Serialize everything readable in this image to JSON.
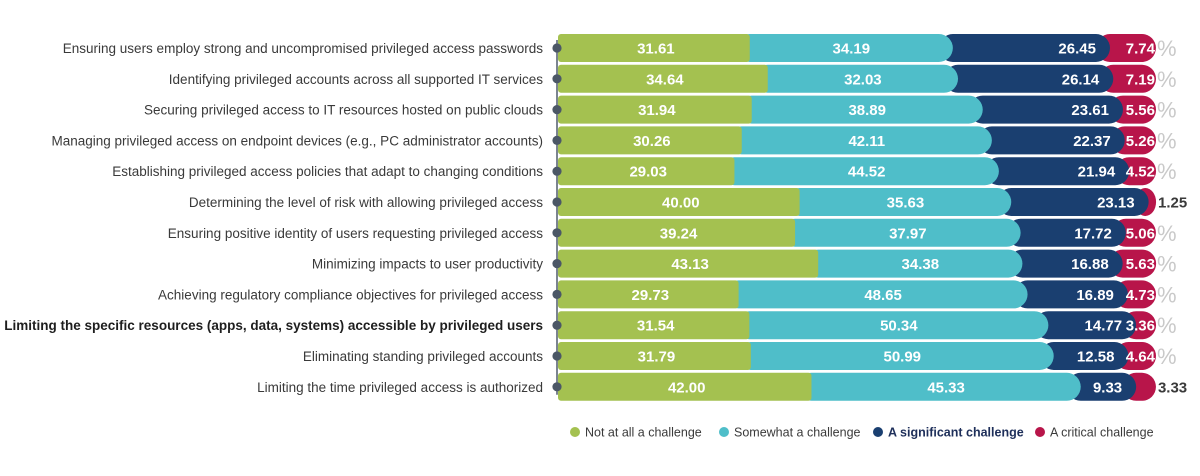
{
  "chart_data": {
    "type": "bar",
    "orientation": "horizontal-stacked-percent",
    "percent_symbol": "%",
    "colors": [
      "#a4c150",
      "#4fbec9",
      "#1a3f70",
      "#b8154a"
    ],
    "categories": [
      "Ensuring users employ strong and uncompromised privileged access passwords",
      "Identifying privileged accounts across all supported IT services",
      "Securing privileged access to IT resources hosted on public clouds",
      "Managing privileged access on endpoint devices (e.g., PC administrator accounts)",
      "Establishing privileged access policies that adapt to changing conditions",
      "Determining the level of risk with allowing privileged access",
      "Ensuring positive identity of users requesting privileged access",
      "Minimizing impacts to user productivity",
      "Achieving regulatory compliance objectives for privileged access",
      "Limiting the specific resources (apps, data, systems) accessible by privileged users",
      "Eliminating standing privileged accounts",
      "Limiting the time privileged access is authorized"
    ],
    "highlighted_category_index": 9,
    "series": [
      {
        "name": "Not at all a challenge",
        "values": [
          31.61,
          34.64,
          31.94,
          30.26,
          29.03,
          40.0,
          39.24,
          43.13,
          29.73,
          31.54,
          31.79,
          42.0
        ]
      },
      {
        "name": "Somewhat a challenge",
        "values": [
          34.19,
          32.03,
          38.89,
          42.11,
          44.52,
          35.63,
          37.97,
          34.38,
          48.65,
          50.34,
          50.99,
          45.33
        ]
      },
      {
        "name": "A significant challenge",
        "values": [
          26.45,
          26.14,
          23.61,
          22.37,
          21.94,
          23.13,
          17.72,
          16.88,
          16.89,
          14.77,
          12.58,
          9.33
        ]
      },
      {
        "name": "A critical challenge",
        "values": [
          7.74,
          7.19,
          5.56,
          5.26,
          4.52,
          1.25,
          5.06,
          5.63,
          4.73,
          3.36,
          4.64,
          3.33
        ]
      }
    ],
    "value_labels": [
      [
        "31.61",
        "34.19",
        "26.45",
        "7.74"
      ],
      [
        "34.64",
        "32.03",
        "26.14",
        "7.19"
      ],
      [
        "31.94",
        "38.89",
        "23.61",
        "5.56"
      ],
      [
        "30.26",
        "42.11",
        "22.37",
        "5.26"
      ],
      [
        "29.03",
        "44.52",
        "21.94",
        "4.52"
      ],
      [
        "40.00",
        "35.63",
        "23.13",
        "1.25"
      ],
      [
        "39.24",
        "37.97",
        "17.72",
        "5.06"
      ],
      [
        "43.13",
        "34.38",
        "16.88",
        "5.63"
      ],
      [
        "29.73",
        "48.65",
        "16.89",
        "4.73"
      ],
      [
        "31.54",
        "50.34",
        "14.77",
        "3.36"
      ],
      [
        "31.79",
        "50.99",
        "12.58",
        "4.64"
      ],
      [
        "42.00",
        "45.33",
        "9.33",
        "3.33"
      ]
    ],
    "outside_label_rows": [
      5,
      11
    ],
    "xlim": [
      0,
      100
    ],
    "legend": {
      "position": "bottom",
      "entries": [
        "Not at all a challenge",
        "Somewhat a challenge",
        "A significant challenge",
        "A critical challenge"
      ],
      "bold_entry_index": 2
    }
  }
}
